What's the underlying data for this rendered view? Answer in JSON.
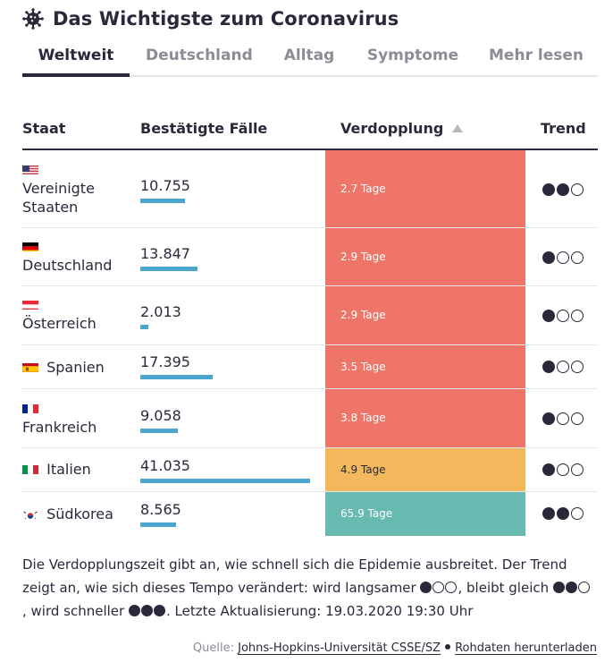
{
  "header": {
    "title": "Das Wichtigste zum Coronavirus",
    "icon": "virus-icon"
  },
  "tabs": [
    {
      "label": "Weltweit",
      "active": true
    },
    {
      "label": "Deutschland",
      "active": false
    },
    {
      "label": "Alltag",
      "active": false
    },
    {
      "label": "Symptome",
      "active": false
    },
    {
      "label": "Mehr lesen",
      "active": false
    }
  ],
  "table": {
    "headers": {
      "country": "Staat",
      "cases": "Bestätigte Fälle",
      "doubling": "Verdopplung",
      "trend": "Trend"
    },
    "sort": {
      "column": "doubling",
      "direction": "ascending"
    },
    "rows": [
      {
        "country": "Vereinigte Staaten",
        "flag": "us-flag",
        "cases": "10.755",
        "cases_value": 10755,
        "doubling": "2.7 Tage",
        "doubling_color": "#ef7569",
        "trend": 2
      },
      {
        "country": "Deutschland",
        "flag": "de-flag",
        "cases": "13.847",
        "cases_value": 13847,
        "doubling": "2.9 Tage",
        "doubling_color": "#ef7569",
        "trend": 1
      },
      {
        "country": "Österreich",
        "flag": "at-flag",
        "cases": "2.013",
        "cases_value": 2013,
        "doubling": "2.9 Tage",
        "doubling_color": "#ef7569",
        "trend": 1
      },
      {
        "country": "Spanien",
        "flag": "es-flag",
        "cases": "17.395",
        "cases_value": 17395,
        "doubling": "3.5 Tage",
        "doubling_color": "#ef7569",
        "trend": 1
      },
      {
        "country": "Frankreich",
        "flag": "fr-flag",
        "cases": "9.058",
        "cases_value": 9058,
        "doubling": "3.8 Tage",
        "doubling_color": "#ef7569",
        "trend": 1
      },
      {
        "country": "Italien",
        "flag": "it-flag",
        "cases": "41.035",
        "cases_value": 41035,
        "doubling": "4.9 Tage",
        "doubling_color": "#f3b85c",
        "trend": 1
      },
      {
        "country": "Südkorea",
        "flag": "kr-flag",
        "cases": "8.565",
        "cases_value": 8565,
        "doubling": "65.9 Tage",
        "doubling_color": "#66bab0",
        "trend": 2
      }
    ]
  },
  "note": {
    "part1": "Die Verdopplungszeit gibt an, wie schnell sich die Epidemie ausbreitet. Der Trend zeigt an, wie sich dieses Tempo verändert: wird langsamer",
    "part2": ", bleibt gleich",
    "part3": ", wird schneller",
    "part4": ". Letzte Aktualisierung: 19.03.2020 19:30 Uhr"
  },
  "source": {
    "label": "Quelle:",
    "link": "Johns-Hopkins-Universität CSSE/SZ",
    "download": "Rohdaten herunterladen"
  }
}
